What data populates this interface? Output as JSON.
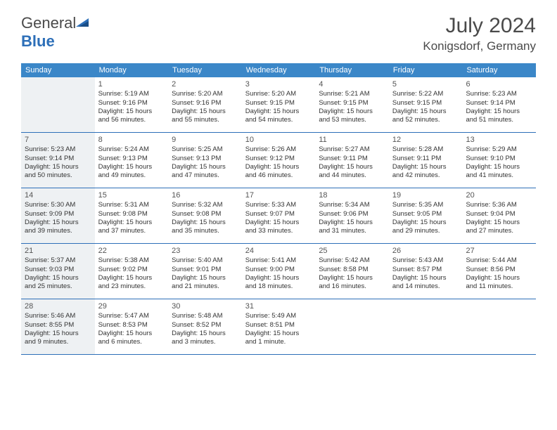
{
  "logo": {
    "text1": "General",
    "text2": "Blue"
  },
  "title": "July 2024",
  "location": "Konigsdorf, Germany",
  "header_bg": "#3b87c8",
  "shaded_bg": "#eef1f3",
  "border_color": "#2d6fb8",
  "weekdays": [
    "Sunday",
    "Monday",
    "Tuesday",
    "Wednesday",
    "Thursday",
    "Friday",
    "Saturday"
  ],
  "weeks": [
    [
      {
        "num": "",
        "sunrise": "",
        "sunset": "",
        "daylight": "",
        "shaded": true
      },
      {
        "num": "1",
        "sunrise": "Sunrise: 5:19 AM",
        "sunset": "Sunset: 9:16 PM",
        "daylight": "Daylight: 15 hours and 56 minutes.",
        "shaded": false
      },
      {
        "num": "2",
        "sunrise": "Sunrise: 5:20 AM",
        "sunset": "Sunset: 9:16 PM",
        "daylight": "Daylight: 15 hours and 55 minutes.",
        "shaded": false
      },
      {
        "num": "3",
        "sunrise": "Sunrise: 5:20 AM",
        "sunset": "Sunset: 9:15 PM",
        "daylight": "Daylight: 15 hours and 54 minutes.",
        "shaded": false
      },
      {
        "num": "4",
        "sunrise": "Sunrise: 5:21 AM",
        "sunset": "Sunset: 9:15 PM",
        "daylight": "Daylight: 15 hours and 53 minutes.",
        "shaded": false
      },
      {
        "num": "5",
        "sunrise": "Sunrise: 5:22 AM",
        "sunset": "Sunset: 9:15 PM",
        "daylight": "Daylight: 15 hours and 52 minutes.",
        "shaded": false
      },
      {
        "num": "6",
        "sunrise": "Sunrise: 5:23 AM",
        "sunset": "Sunset: 9:14 PM",
        "daylight": "Daylight: 15 hours and 51 minutes.",
        "shaded": false
      }
    ],
    [
      {
        "num": "7",
        "sunrise": "Sunrise: 5:23 AM",
        "sunset": "Sunset: 9:14 PM",
        "daylight": "Daylight: 15 hours and 50 minutes.",
        "shaded": true
      },
      {
        "num": "8",
        "sunrise": "Sunrise: 5:24 AM",
        "sunset": "Sunset: 9:13 PM",
        "daylight": "Daylight: 15 hours and 49 minutes.",
        "shaded": false
      },
      {
        "num": "9",
        "sunrise": "Sunrise: 5:25 AM",
        "sunset": "Sunset: 9:13 PM",
        "daylight": "Daylight: 15 hours and 47 minutes.",
        "shaded": false
      },
      {
        "num": "10",
        "sunrise": "Sunrise: 5:26 AM",
        "sunset": "Sunset: 9:12 PM",
        "daylight": "Daylight: 15 hours and 46 minutes.",
        "shaded": false
      },
      {
        "num": "11",
        "sunrise": "Sunrise: 5:27 AM",
        "sunset": "Sunset: 9:11 PM",
        "daylight": "Daylight: 15 hours and 44 minutes.",
        "shaded": false
      },
      {
        "num": "12",
        "sunrise": "Sunrise: 5:28 AM",
        "sunset": "Sunset: 9:11 PM",
        "daylight": "Daylight: 15 hours and 42 minutes.",
        "shaded": false
      },
      {
        "num": "13",
        "sunrise": "Sunrise: 5:29 AM",
        "sunset": "Sunset: 9:10 PM",
        "daylight": "Daylight: 15 hours and 41 minutes.",
        "shaded": false
      }
    ],
    [
      {
        "num": "14",
        "sunrise": "Sunrise: 5:30 AM",
        "sunset": "Sunset: 9:09 PM",
        "daylight": "Daylight: 15 hours and 39 minutes.",
        "shaded": true
      },
      {
        "num": "15",
        "sunrise": "Sunrise: 5:31 AM",
        "sunset": "Sunset: 9:08 PM",
        "daylight": "Daylight: 15 hours and 37 minutes.",
        "shaded": false
      },
      {
        "num": "16",
        "sunrise": "Sunrise: 5:32 AM",
        "sunset": "Sunset: 9:08 PM",
        "daylight": "Daylight: 15 hours and 35 minutes.",
        "shaded": false
      },
      {
        "num": "17",
        "sunrise": "Sunrise: 5:33 AM",
        "sunset": "Sunset: 9:07 PM",
        "daylight": "Daylight: 15 hours and 33 minutes.",
        "shaded": false
      },
      {
        "num": "18",
        "sunrise": "Sunrise: 5:34 AM",
        "sunset": "Sunset: 9:06 PM",
        "daylight": "Daylight: 15 hours and 31 minutes.",
        "shaded": false
      },
      {
        "num": "19",
        "sunrise": "Sunrise: 5:35 AM",
        "sunset": "Sunset: 9:05 PM",
        "daylight": "Daylight: 15 hours and 29 minutes.",
        "shaded": false
      },
      {
        "num": "20",
        "sunrise": "Sunrise: 5:36 AM",
        "sunset": "Sunset: 9:04 PM",
        "daylight": "Daylight: 15 hours and 27 minutes.",
        "shaded": false
      }
    ],
    [
      {
        "num": "21",
        "sunrise": "Sunrise: 5:37 AM",
        "sunset": "Sunset: 9:03 PM",
        "daylight": "Daylight: 15 hours and 25 minutes.",
        "shaded": true
      },
      {
        "num": "22",
        "sunrise": "Sunrise: 5:38 AM",
        "sunset": "Sunset: 9:02 PM",
        "daylight": "Daylight: 15 hours and 23 minutes.",
        "shaded": false
      },
      {
        "num": "23",
        "sunrise": "Sunrise: 5:40 AM",
        "sunset": "Sunset: 9:01 PM",
        "daylight": "Daylight: 15 hours and 21 minutes.",
        "shaded": false
      },
      {
        "num": "24",
        "sunrise": "Sunrise: 5:41 AM",
        "sunset": "Sunset: 9:00 PM",
        "daylight": "Daylight: 15 hours and 18 minutes.",
        "shaded": false
      },
      {
        "num": "25",
        "sunrise": "Sunrise: 5:42 AM",
        "sunset": "Sunset: 8:58 PM",
        "daylight": "Daylight: 15 hours and 16 minutes.",
        "shaded": false
      },
      {
        "num": "26",
        "sunrise": "Sunrise: 5:43 AM",
        "sunset": "Sunset: 8:57 PM",
        "daylight": "Daylight: 15 hours and 14 minutes.",
        "shaded": false
      },
      {
        "num": "27",
        "sunrise": "Sunrise: 5:44 AM",
        "sunset": "Sunset: 8:56 PM",
        "daylight": "Daylight: 15 hours and 11 minutes.",
        "shaded": false
      }
    ],
    [
      {
        "num": "28",
        "sunrise": "Sunrise: 5:46 AM",
        "sunset": "Sunset: 8:55 PM",
        "daylight": "Daylight: 15 hours and 9 minutes.",
        "shaded": true
      },
      {
        "num": "29",
        "sunrise": "Sunrise: 5:47 AM",
        "sunset": "Sunset: 8:53 PM",
        "daylight": "Daylight: 15 hours and 6 minutes.",
        "shaded": false
      },
      {
        "num": "30",
        "sunrise": "Sunrise: 5:48 AM",
        "sunset": "Sunset: 8:52 PM",
        "daylight": "Daylight: 15 hours and 3 minutes.",
        "shaded": false
      },
      {
        "num": "31",
        "sunrise": "Sunrise: 5:49 AM",
        "sunset": "Sunset: 8:51 PM",
        "daylight": "Daylight: 15 hours and 1 minute.",
        "shaded": false
      },
      {
        "num": "",
        "sunrise": "",
        "sunset": "",
        "daylight": "",
        "shaded": false
      },
      {
        "num": "",
        "sunrise": "",
        "sunset": "",
        "daylight": "",
        "shaded": false
      },
      {
        "num": "",
        "sunrise": "",
        "sunset": "",
        "daylight": "",
        "shaded": false
      }
    ]
  ]
}
